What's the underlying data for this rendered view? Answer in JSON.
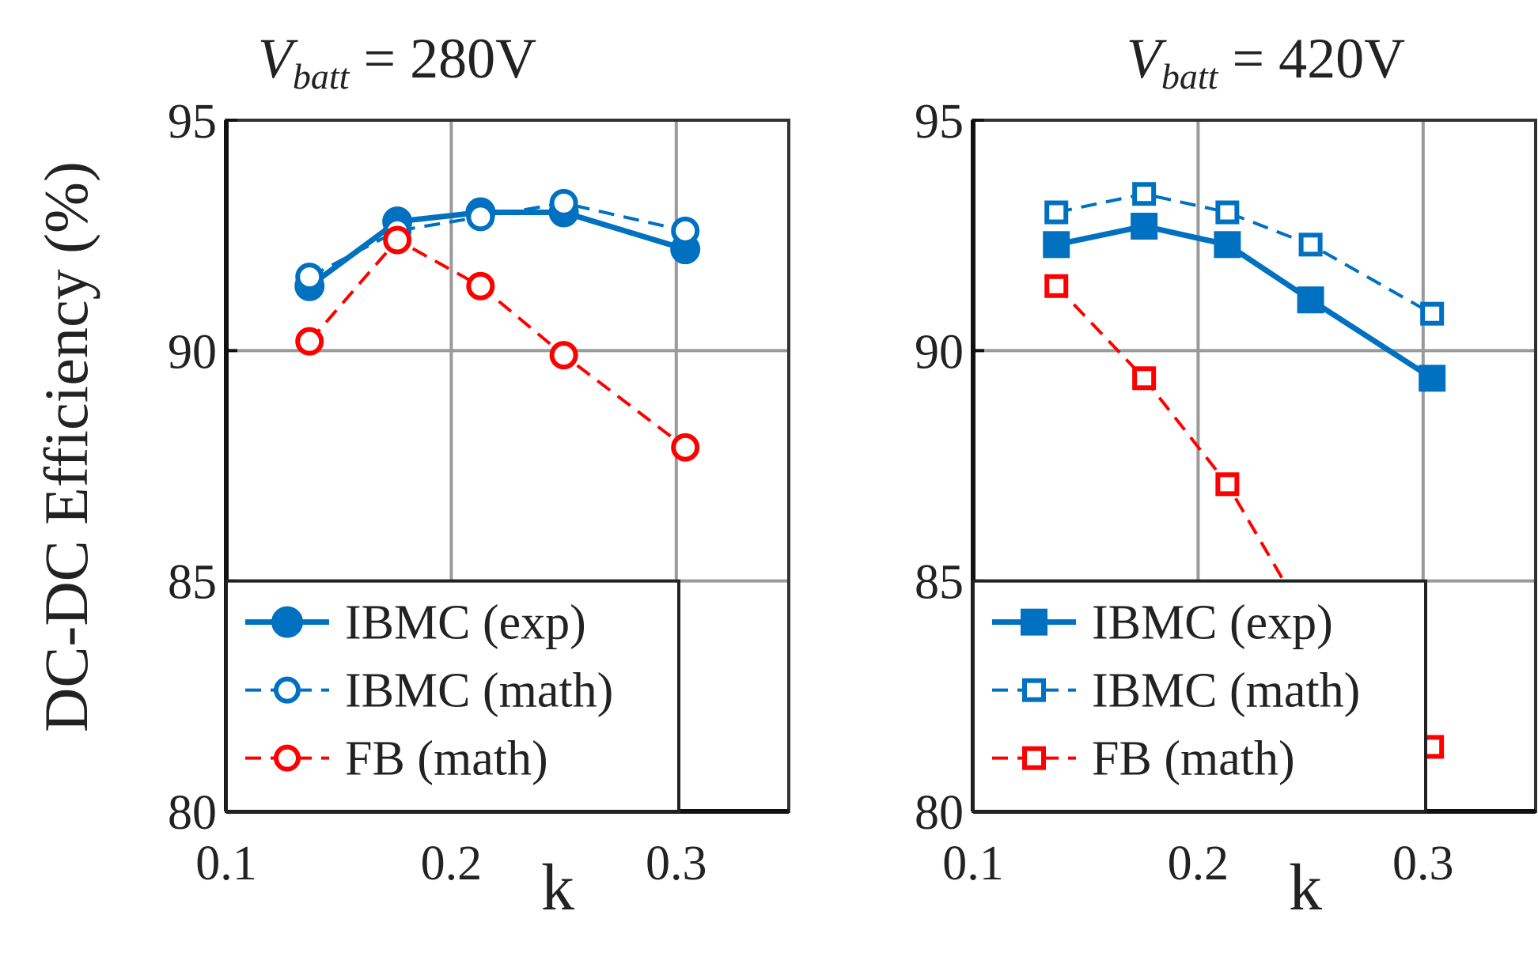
{
  "figure": {
    "ylabel": "DC-DC Efficiency (%)"
  },
  "chart_data": [
    {
      "type": "line",
      "title": "V_batt = 280V",
      "title_parts": {
        "symbol": "V",
        "subscript": "batt",
        "rest": " = 280V"
      },
      "xlabel": "k",
      "ylabel": "DC-DC Efficiency (%)",
      "xlim": [
        0.1,
        0.35
      ],
      "ylim": [
        80,
        95
      ],
      "xticks": [
        0.1,
        0.2,
        0.3
      ],
      "xtick_labels": [
        "0.1",
        "0.2",
        "0.3"
      ],
      "yticks": [
        80,
        85,
        90,
        95
      ],
      "ytick_labels": [
        "80",
        "85",
        "90",
        "95"
      ],
      "grid": true,
      "legend_position": "bottom-left",
      "series": [
        {
          "name": "IBMC (exp)",
          "color": "#0070C0",
          "line": "solid",
          "marker": "circle",
          "filled": true,
          "x": [
            0.137,
            0.176,
            0.213,
            0.25,
            0.304
          ],
          "y": [
            91.4,
            92.8,
            93.0,
            93.0,
            92.2
          ]
        },
        {
          "name": "IBMC (math)",
          "color": "#0070C0",
          "line": "dashed",
          "marker": "circle",
          "filled": false,
          "x": [
            0.137,
            0.176,
            0.213,
            0.25,
            0.304
          ],
          "y": [
            91.6,
            92.6,
            92.9,
            93.2,
            92.6
          ]
        },
        {
          "name": "FB (math)",
          "color": "#FF0000",
          "line": "dashed",
          "marker": "circle",
          "filled": false,
          "x": [
            0.137,
            0.176,
            0.213,
            0.25,
            0.304
          ],
          "y": [
            90.2,
            92.4,
            91.4,
            89.9,
            87.9
          ]
        }
      ]
    },
    {
      "type": "line",
      "title": "V_batt = 420V",
      "title_parts": {
        "symbol": "V",
        "subscript": "batt",
        "rest": " = 420V"
      },
      "xlabel": "k",
      "ylabel": "DC-DC Efficiency (%)",
      "xlim": [
        0.1,
        0.35
      ],
      "ylim": [
        80,
        95
      ],
      "xticks": [
        0.1,
        0.2,
        0.3
      ],
      "xtick_labels": [
        "0.1",
        "0.2",
        "0.3"
      ],
      "yticks": [
        80,
        85,
        90,
        95
      ],
      "ytick_labels": [
        "80",
        "85",
        "90",
        "95"
      ],
      "grid": true,
      "legend_position": "bottom-left",
      "series": [
        {
          "name": "IBMC (exp)",
          "color": "#0070C0",
          "line": "solid",
          "marker": "square",
          "filled": true,
          "x": [
            0.137,
            0.176,
            0.213,
            0.25,
            0.304
          ],
          "y": [
            92.3,
            92.7,
            92.3,
            91.1,
            89.4
          ]
        },
        {
          "name": "IBMC (math)",
          "color": "#0070C0",
          "line": "dashed",
          "marker": "square",
          "filled": false,
          "x": [
            0.137,
            0.176,
            0.213,
            0.25,
            0.304
          ],
          "y": [
            93.0,
            93.4,
            93.0,
            92.3,
            90.8
          ]
        },
        {
          "name": "FB (math)",
          "color": "#FF0000",
          "line": "dashed",
          "marker": "square",
          "filled": false,
          "x": [
            0.137,
            0.176,
            0.213,
            0.25,
            0.304
          ],
          "y": [
            91.4,
            89.4,
            87.1,
            84.0,
            81.4
          ]
        }
      ]
    }
  ]
}
